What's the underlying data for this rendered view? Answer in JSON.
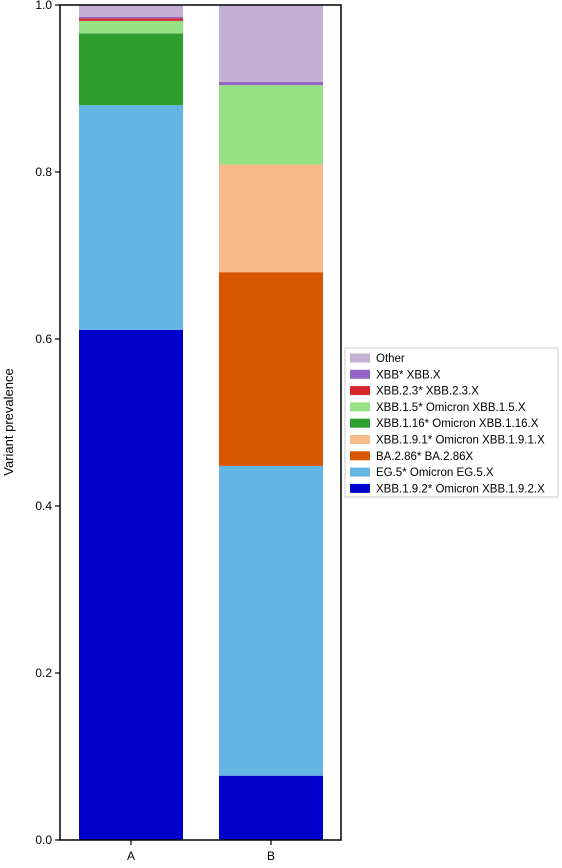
{
  "chart_data": {
    "type": "bar",
    "stacked": true,
    "categories": [
      "A",
      "B"
    ],
    "ylabel": "Variant prevalence",
    "xlabel": "",
    "ylim": [
      0.0,
      1.0
    ],
    "yticks": [
      "0.0",
      "0.2",
      "0.4",
      "0.6",
      "0.8",
      "1.0"
    ],
    "grid": false,
    "legend_position": "right",
    "series": [
      {
        "name": "XBB.1.9.2* Omicron XBB.1.9.2.X",
        "color": "#0000CD",
        "values": [
          0.611,
          0.077
        ]
      },
      {
        "name": "EG.5* Omicron EG.5.X",
        "color": "#63B6E4",
        "values": [
          0.269,
          0.371
        ]
      },
      {
        "name": "BA.2.86* BA.2.86X",
        "color": "#D85600",
        "values": [
          0.0,
          0.232
        ]
      },
      {
        "name": "XBB.1.9.1* Omicron XBB.1.9.1.X",
        "color": "#F7BA88",
        "values": [
          0.0,
          0.129
        ]
      },
      {
        "name": "XBB.1.16* Omicron XBB.1.16.X",
        "color": "#2E9E2E",
        "values": [
          0.086,
          0.0
        ]
      },
      {
        "name": "XBB.1.5* Omicron XBB.1.5.X",
        "color": "#96E184",
        "values": [
          0.015,
          0.095
        ]
      },
      {
        "name": "XBB.2.3* XBB.2.3.X",
        "color": "#D62728",
        "values": [
          0.003,
          0.0
        ]
      },
      {
        "name": "XBB* XBB.X",
        "color": "#9565C6",
        "values": [
          0.002,
          0.004
        ]
      },
      {
        "name": "Other",
        "color": "#C5B0D5",
        "values": [
          0.014,
          0.092
        ]
      }
    ]
  }
}
